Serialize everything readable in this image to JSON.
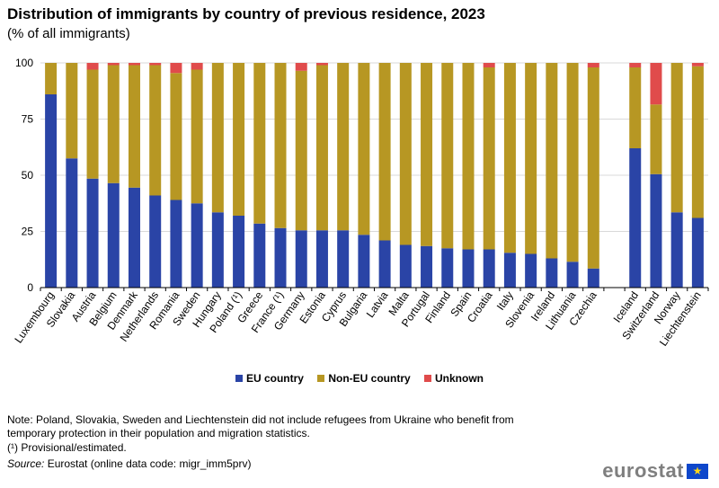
{
  "header": {
    "title": "Distribution of immigrants by country of previous residence, 2023",
    "subtitle": "(% of all immigrants)"
  },
  "chart_data": {
    "type": "bar",
    "stacked": true,
    "categories": [
      "Luxembourg",
      "Slovakia",
      "Austria",
      "Belgium",
      "Denmark",
      "Netherlands",
      "Romania",
      "Sweden",
      "Hungary",
      "Poland (¹)",
      "Greece",
      "France (¹)",
      "Germany",
      "Estonia",
      "Cyprus",
      "Bulgaria",
      "Latvia",
      "Malta",
      "Portugal",
      "Finland",
      "Spain",
      "Croatia",
      "Italy",
      "Slovenia",
      "Ireland",
      "Lithuania",
      "Czechia",
      "Iceland",
      "Switzerland",
      "Norway",
      "Liechtenstein"
    ],
    "group_break_after": "Czechia",
    "series": [
      {
        "name": "EU country",
        "color": "#2a44a6",
        "values": [
          86,
          57.5,
          48.5,
          46.5,
          44.5,
          41,
          39,
          37.5,
          33.5,
          32,
          28.5,
          26.5,
          25.5,
          25.5,
          25.5,
          23.5,
          21,
          19,
          18.5,
          17.5,
          17,
          17,
          15.5,
          15,
          13,
          11.5,
          8.5,
          62,
          50.5,
          33.5,
          31
        ]
      },
      {
        "name": "Non-EU country",
        "color": "#b79723",
        "values": [
          14,
          42.5,
          48.5,
          52.5,
          54.5,
          58,
          56.5,
          59.5,
          66.5,
          68,
          71.5,
          73.5,
          71,
          73.5,
          74.5,
          76.5,
          79,
          81,
          81.5,
          82.5,
          83,
          81,
          84.5,
          85,
          87,
          88.5,
          89.5,
          36,
          31,
          66.5,
          67.5
        ]
      },
      {
        "name": "Unknown",
        "color": "#e04b4b",
        "values": [
          0,
          0,
          3,
          1,
          1,
          1,
          4.5,
          3,
          0,
          0,
          0,
          0,
          3.5,
          1,
          0,
          0,
          0,
          0,
          0,
          0,
          0,
          2,
          0,
          0,
          0,
          0,
          2,
          2,
          18.5,
          0,
          1.5
        ]
      }
    ],
    "y_ticks": [
      "0",
      "25",
      "50",
      "75",
      "100"
    ],
    "ylim": [
      0,
      100
    ],
    "grid": true,
    "legend_position": "bottom"
  },
  "notes": {
    "note": "Note: Poland, Slovakia, Sweden and Liechtenstein did not include refugees from Ukraine who benefit from temporary protection in their population and migration statistics.",
    "provisional": "(¹) Provisional/estimated.",
    "source_label": "Source:",
    "source_text": "Eurostat  (online data code: migr_imm5prv)"
  },
  "logo": {
    "text": "eurostat",
    "flag_stars": "★"
  }
}
